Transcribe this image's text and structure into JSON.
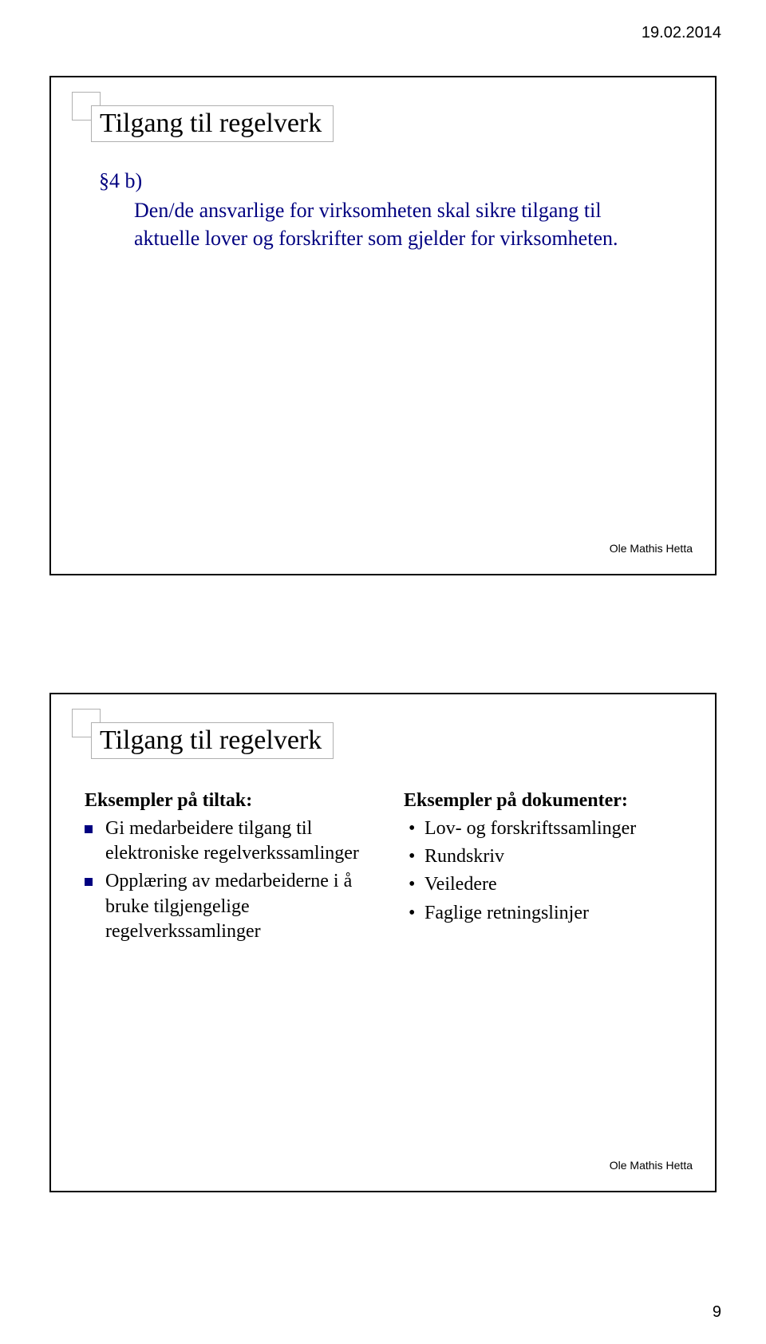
{
  "header_date": "19.02.2014",
  "page_number": "9",
  "slide1": {
    "title": "Tilgang til regelverk",
    "section_label": "§4 b)",
    "body": "Den/de ansvarlige for virksomheten skal sikre tilgang til aktuelle lover og forskrifter som gjelder for virksomheten.",
    "footer": "Ole Mathis Hetta"
  },
  "slide2": {
    "title": "Tilgang til regelverk",
    "left": {
      "heading": "Eksempler på tiltak:",
      "items": [
        "Gi medarbeidere tilgang til elektroniske regelverkssamlinger",
        "Opplæring av medarbeiderne i å bruke tilgjengelige regelverkssamlinger"
      ]
    },
    "right": {
      "heading": "Eksempler på dokumenter:",
      "items": [
        "Lov- og forskriftssamlinger",
        "Rundskriv",
        "Veiledere",
        "Faglige retningslinjer"
      ]
    },
    "footer": "Ole Mathis Hetta"
  }
}
